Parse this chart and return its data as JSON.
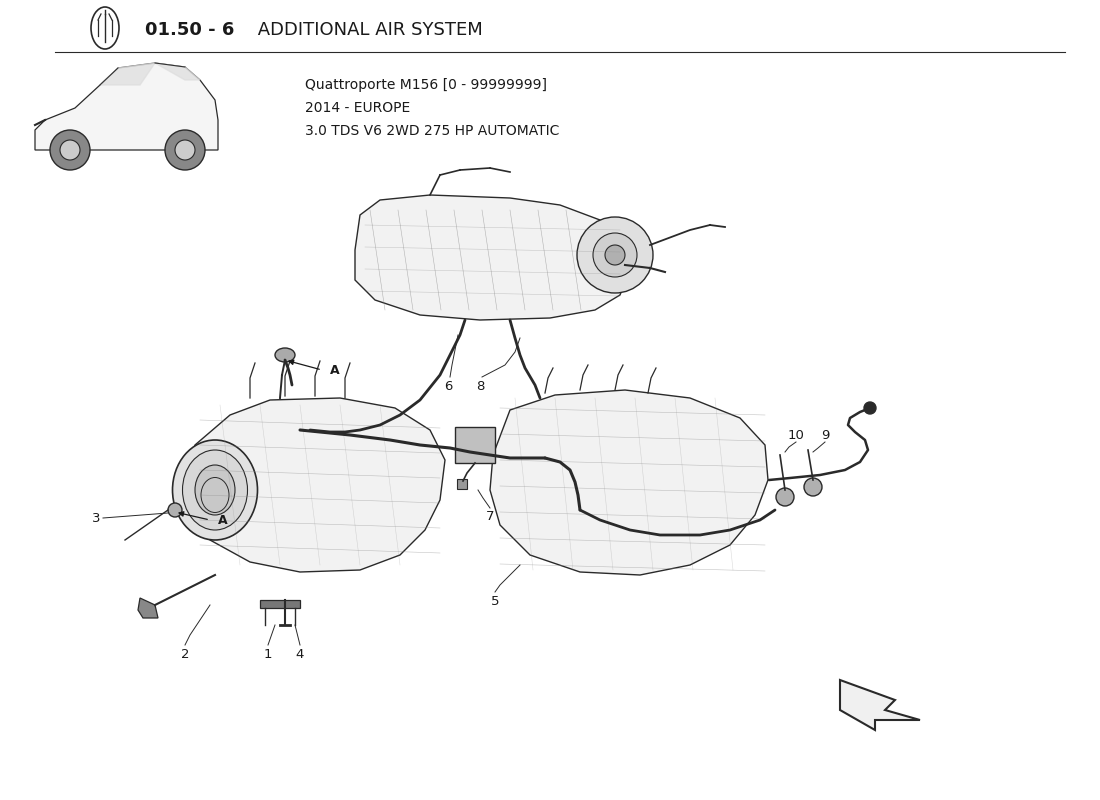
{
  "title_bold": "01.50 - 6",
  "title_regular": " ADDITIONAL AIR SYSTEM",
  "spec_line1": "Quattroporte M156 [0 - 99999999]",
  "spec_line2": "2014 - EUROPE",
  "spec_line3": "3.0 TDS V6 2WD 275 HP AUTOMATIC",
  "background_color": "#ffffff",
  "line_color": "#2a2a2a",
  "text_color": "#1a1a1a",
  "gray_fill": "#d0d0d0",
  "light_fill": "#e8e8e8"
}
